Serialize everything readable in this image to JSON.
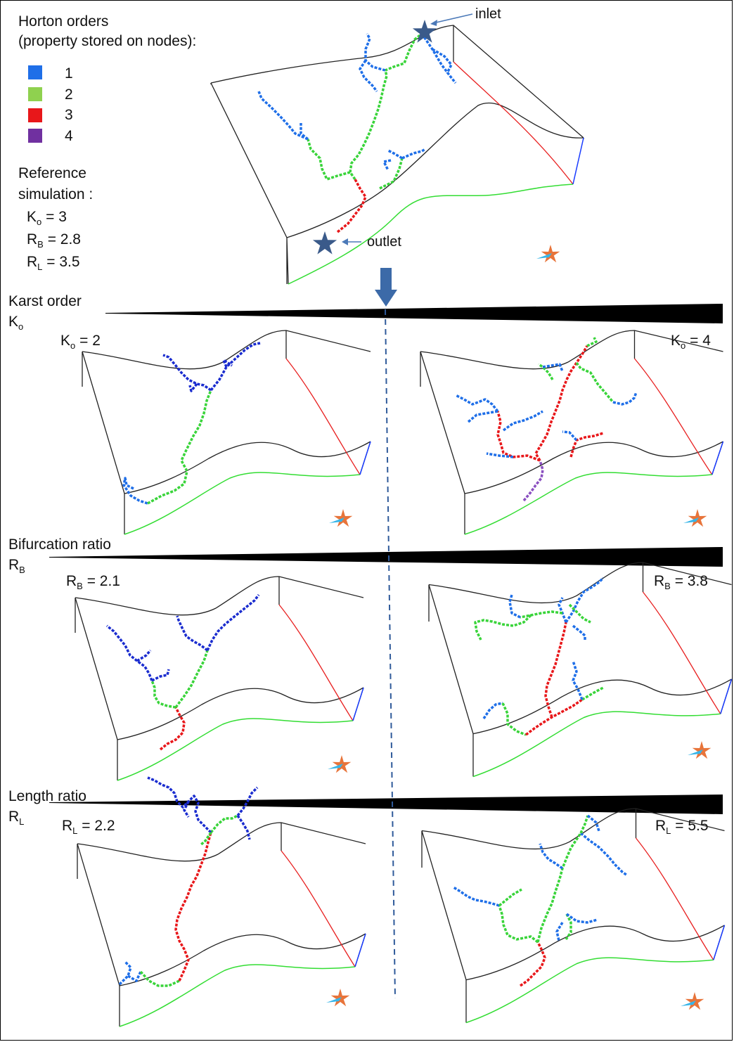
{
  "legend": {
    "title_line1": "Horton orders",
    "title_line2": "(property stored on nodes):",
    "items": [
      {
        "label": "1",
        "color": "#1f6fe8"
      },
      {
        "label": "2",
        "color": "#8fd14f"
      },
      {
        "label": "3",
        "color": "#e8171a"
      },
      {
        "label": "4",
        "color": "#7030a0"
      }
    ]
  },
  "reference": {
    "line1": "Reference",
    "line2": "simulation :",
    "ko": {
      "symbol": "K",
      "sub": "o",
      "value": "= 3"
    },
    "rb": {
      "symbol": "R",
      "sub": "B",
      "value": "= 2.8"
    },
    "rl": {
      "symbol": "R",
      "sub": "L",
      "value": "= 3.5"
    }
  },
  "annotations": {
    "inlet": "inlet",
    "outlet": "outlet"
  },
  "sections": [
    {
      "title": "Karst order",
      "symbol": "K",
      "sub": "o",
      "left": {
        "symbol": "K",
        "sub": "o",
        "value": "= 2"
      },
      "right": {
        "symbol": "K",
        "sub": "o",
        "value": "= 4"
      }
    },
    {
      "title": "Bifurcation ratio",
      "symbol": "R",
      "sub": "B",
      "left": {
        "symbol": "R",
        "sub": "B",
        "value": "= 2.1"
      },
      "right": {
        "symbol": "R",
        "sub": "B",
        "value": "= 3.8"
      }
    },
    {
      "title": "Length ratio",
      "symbol": "R",
      "sub": "L",
      "left": {
        "symbol": "R",
        "sub": "L",
        "value": "= 2.2"
      },
      "right": {
        "symbol": "R",
        "sub": "L",
        "value": "= 5.5"
      }
    }
  ],
  "colors": {
    "order1": "#1f6fe8",
    "order1_dark": "#1a2ccf",
    "order2": "#39d43a",
    "order3": "#e8171a",
    "order4": "#8a4fc0",
    "edge_red": "#e82020",
    "edge_green": "#33dd33",
    "edge_blue": "#1a3cff",
    "star": "#3a5a8a"
  }
}
